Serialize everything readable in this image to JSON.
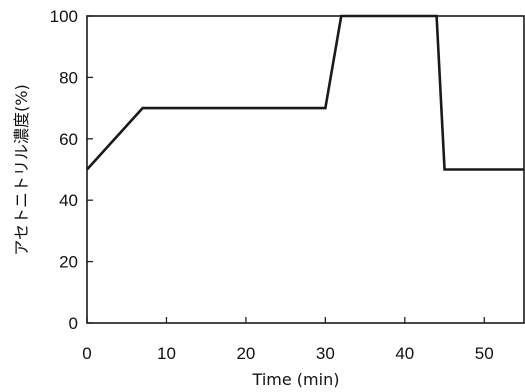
{
  "chart_data": {
    "type": "line",
    "title": "",
    "xlabel": "Time (min)",
    "ylabel": "アセトニトリル濃度(%)",
    "xlim": [
      0,
      55
    ],
    "ylim": [
      0,
      100
    ],
    "xticks": [
      0,
      10,
      20,
      30,
      40,
      50
    ],
    "yticks": [
      0,
      20,
      40,
      60,
      80,
      100
    ],
    "grid": false,
    "legend": "none",
    "series": [
      {
        "x": [
          0,
          7,
          30,
          32,
          44,
          45,
          55
        ],
        "y": [
          50,
          70,
          70,
          100,
          100,
          50,
          50
        ],
        "color": "#1a1a1a"
      }
    ]
  }
}
